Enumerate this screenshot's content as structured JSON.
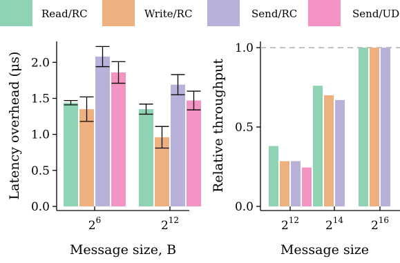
{
  "legend": [
    {
      "name": "Read/RC",
      "color": "#8ed3b4"
    },
    {
      "name": "Write/RC",
      "color": "#efb07f"
    },
    {
      "name": "Send/RC",
      "color": "#b8b1d9"
    },
    {
      "name": "Send/UD",
      "color": "#f394c4"
    }
  ],
  "chart_data": [
    {
      "type": "bar",
      "categories": [
        {
          "base": "2",
          "exp": "6"
        },
        {
          "base": "2",
          "exp": "12"
        }
      ],
      "series": [
        {
          "name": "Read/RC",
          "values": [
            1.44,
            1.35
          ],
          "error": [
            0.03,
            0.07
          ]
        },
        {
          "name": "Write/RC",
          "values": [
            1.35,
            0.96
          ],
          "error": [
            0.17,
            0.15
          ]
        },
        {
          "name": "Send/RC",
          "values": [
            2.08,
            1.69
          ],
          "error": [
            0.14,
            0.14
          ]
        },
        {
          "name": "Send/UD",
          "values": [
            1.86,
            1.47
          ],
          "error": [
            0.15,
            0.13
          ]
        }
      ],
      "xlabel": "Message size, B",
      "ylabel": "Latency overhead (μs)",
      "ylim": [
        0,
        2.3
      ],
      "yticks": [
        "0.0",
        "0.5",
        "1.0",
        "1.5",
        "2.0"
      ],
      "ytick_values": [
        0,
        0.5,
        1.0,
        1.5,
        2.0
      ],
      "grid": false,
      "legend_placement": "top"
    },
    {
      "type": "bar",
      "categories": [
        {
          "base": "2",
          "exp": "12"
        },
        {
          "base": "2",
          "exp": "14"
        },
        {
          "base": "2",
          "exp": "16"
        }
      ],
      "series": [
        {
          "name": "Read/RC",
          "values": [
            0.38,
            0.76,
            1.0
          ]
        },
        {
          "name": "Write/RC",
          "values": [
            0.285,
            0.7,
            1.0
          ]
        },
        {
          "name": "Send/RC",
          "values": [
            0.285,
            0.67,
            1.0
          ]
        },
        {
          "name": "Send/UD",
          "values": [
            0.245,
            null,
            null
          ]
        }
      ],
      "reference_line": 1.0,
      "xlabel": "Message size",
      "ylabel": "Relative throughput",
      "ylim": [
        0,
        1.02
      ],
      "yticks": [
        "0.0",
        "0.5",
        "1.0"
      ],
      "ytick_values": [
        0,
        0.5,
        1.0
      ],
      "grid": false
    }
  ]
}
